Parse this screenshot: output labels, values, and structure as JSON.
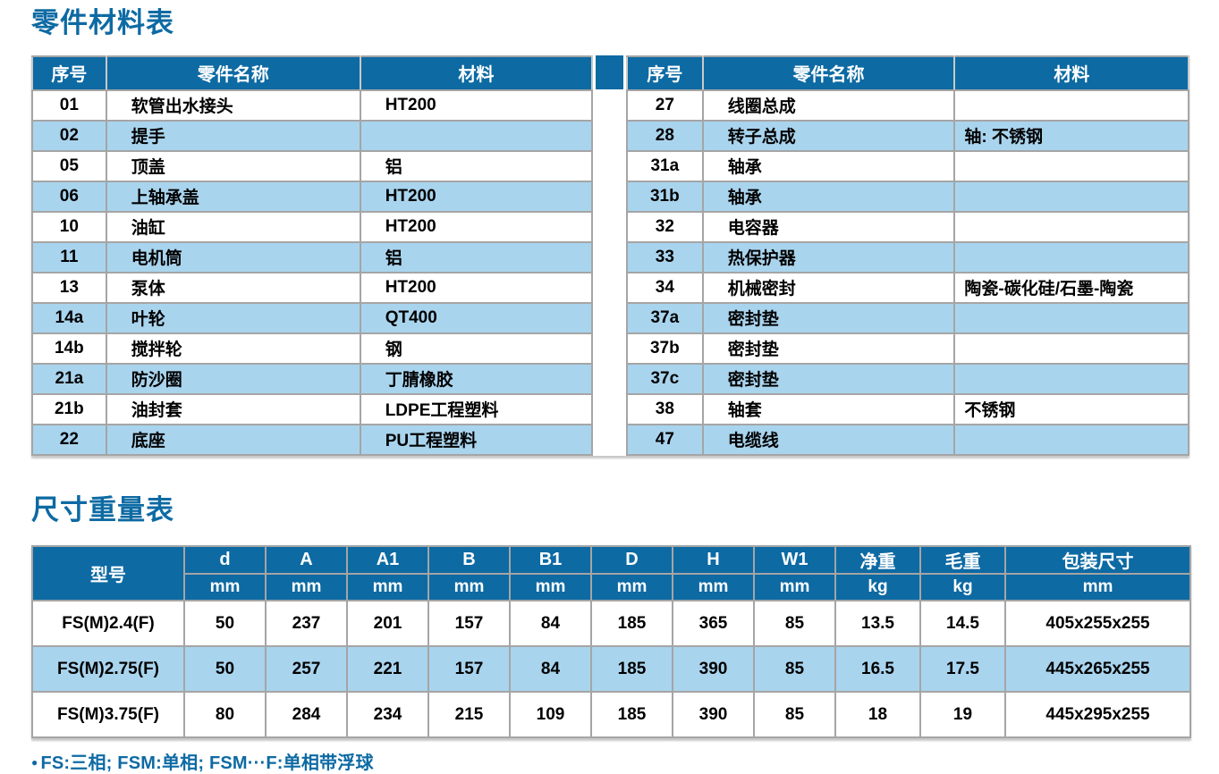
{
  "parts_table": {
    "title": "零件材料表",
    "columns": [
      "序号",
      "零件名称",
      "材料"
    ],
    "left_rows": [
      {
        "no": "01",
        "name": "软管出水接头",
        "material": "HT200"
      },
      {
        "no": "02",
        "name": "提手",
        "material": ""
      },
      {
        "no": "05",
        "name": "顶盖",
        "material": "铝"
      },
      {
        "no": "06",
        "name": "上轴承盖",
        "material": "HT200"
      },
      {
        "no": "10",
        "name": "油缸",
        "material": "HT200"
      },
      {
        "no": "11",
        "name": "电机筒",
        "material": "铝"
      },
      {
        "no": "13",
        "name": "泵体",
        "material": "HT200"
      },
      {
        "no": "14a",
        "name": "叶轮",
        "material": "QT400"
      },
      {
        "no": "14b",
        "name": "搅拌轮",
        "material": "钢"
      },
      {
        "no": "21a",
        "name": "防沙圈",
        "material": "丁腈橡胶"
      },
      {
        "no": "21b",
        "name": "油封套",
        "material": "LDPE工程塑料"
      },
      {
        "no": "22",
        "name": "底座",
        "material": "PU工程塑料"
      }
    ],
    "right_rows": [
      {
        "no": "27",
        "name": "线圈总成",
        "material": ""
      },
      {
        "no": "28",
        "name": "转子总成",
        "material": "轴: 不锈钢"
      },
      {
        "no": "31a",
        "name": "轴承",
        "material": ""
      },
      {
        "no": "31b",
        "name": "轴承",
        "material": ""
      },
      {
        "no": "32",
        "name": "电容器",
        "material": ""
      },
      {
        "no": "33",
        "name": "热保护器",
        "material": ""
      },
      {
        "no": "34",
        "name": "机械密封",
        "material": "陶瓷-碳化硅/石墨-陶瓷"
      },
      {
        "no": "37a",
        "name": "密封垫",
        "material": ""
      },
      {
        "no": "37b",
        "name": "密封垫",
        "material": ""
      },
      {
        "no": "37c",
        "name": "密封垫",
        "material": ""
      },
      {
        "no": "38",
        "name": "轴套",
        "material": "不锈钢"
      },
      {
        "no": "47",
        "name": "电缆线",
        "material": ""
      }
    ]
  },
  "dimensions_table": {
    "title": "尺寸重量表",
    "model_header": "型号",
    "columns": [
      {
        "label": "d",
        "unit": "mm"
      },
      {
        "label": "A",
        "unit": "mm"
      },
      {
        "label": "A1",
        "unit": "mm"
      },
      {
        "label": "B",
        "unit": "mm"
      },
      {
        "label": "B1",
        "unit": "mm"
      },
      {
        "label": "D",
        "unit": "mm"
      },
      {
        "label": "H",
        "unit": "mm"
      },
      {
        "label": "W1",
        "unit": "mm"
      },
      {
        "label": "净重",
        "unit": "kg"
      },
      {
        "label": "毛重",
        "unit": "kg"
      },
      {
        "label": "包装尺寸",
        "unit": "mm"
      }
    ],
    "rows": [
      {
        "model": "FS(M)2.4(F)",
        "values": [
          "50",
          "237",
          "201",
          "157",
          "84",
          "185",
          "365",
          "85",
          "13.5",
          "14.5",
          "405x255x255"
        ]
      },
      {
        "model": "FS(M)2.75(F)",
        "values": [
          "50",
          "257",
          "221",
          "157",
          "84",
          "185",
          "390",
          "85",
          "16.5",
          "17.5",
          "445x265x255"
        ]
      },
      {
        "model": "FS(M)3.75(F)",
        "values": [
          "80",
          "284",
          "234",
          "215",
          "109",
          "185",
          "390",
          "85",
          "18",
          "19",
          "445x295x255"
        ]
      }
    ]
  },
  "footnote": {
    "bullet": "●",
    "text": "FS:三相; FSM:单相; FSM···F:单相带浮球"
  },
  "colors": {
    "accent_blue": "#0d6aa3",
    "stripe_blue": "#a9d4ee",
    "grid_gray": "#a5a5a5"
  }
}
